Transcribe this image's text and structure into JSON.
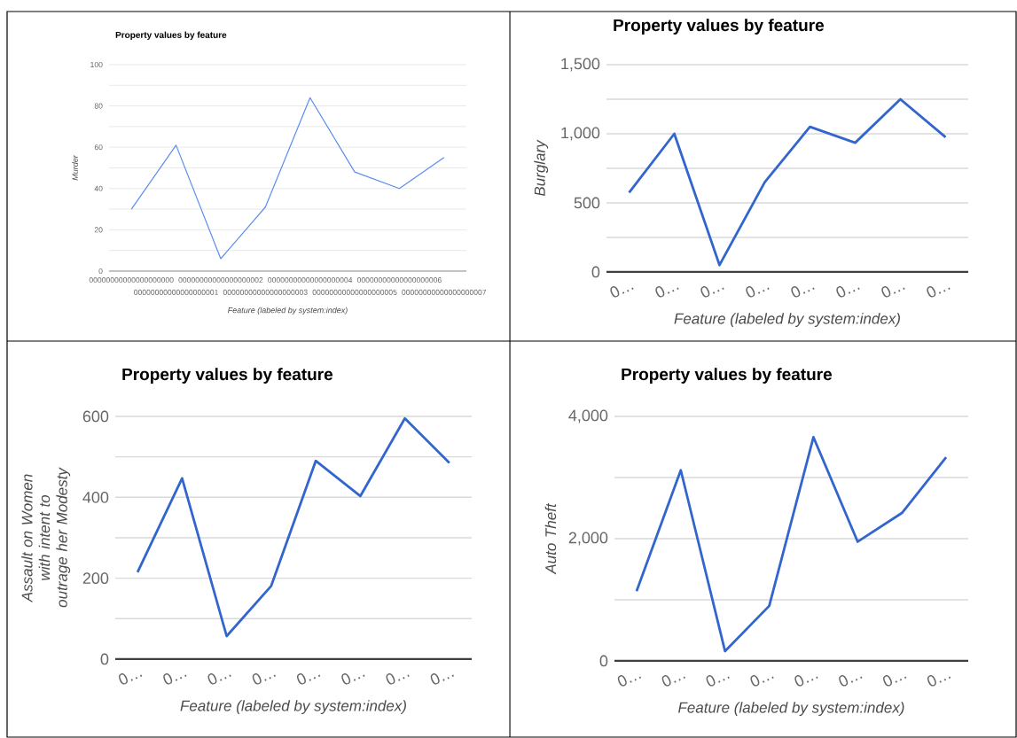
{
  "chart_data": [
    {
      "type": "line",
      "title": "Property values by feature",
      "xlabel": "Feature (labeled by system:index)",
      "ylabel": "Murder",
      "categories": [
        "00000000000000000000",
        "00000000000000000001",
        "00000000000000000002",
        "00000000000000000003",
        "00000000000000000004",
        "00000000000000000005",
        "00000000000000000006",
        "00000000000000000007"
      ],
      "values": [
        30,
        61,
        6,
        31,
        84,
        48,
        40,
        55
      ],
      "color": "#5b8def",
      "ylim": [
        0,
        100
      ],
      "yticks": [
        0,
        {
          "value": 10,
          "label": null
        },
        20,
        {
          "value": 30,
          "label": null
        },
        40,
        {
          "value": 50,
          "label": null
        },
        60,
        {
          "value": 70,
          "label": null
        },
        80,
        {
          "value": 90,
          "label": null
        },
        100
      ],
      "grid": "y"
    },
    {
      "type": "line",
      "title": "Property values by feature",
      "xlabel": "Feature (labeled by system:index)",
      "ylabel": "Burglary",
      "categories": [
        "0…",
        "0…",
        "0…",
        "0…",
        "0…",
        "0…",
        "0…",
        "0…"
      ],
      "values": [
        575,
        1000,
        50,
        650,
        1050,
        935,
        1250,
        975
      ],
      "color": "#3366cc",
      "ylim": [
        0,
        1500
      ],
      "yticks": [
        0,
        {
          "value": 250,
          "label": null
        },
        500,
        {
          "value": 750,
          "label": null
        },
        {
          "value": 1000,
          "label": "1,000"
        },
        {
          "value": 1250,
          "label": null
        },
        {
          "value": 1500,
          "label": "1,500"
        }
      ],
      "grid": "y"
    },
    {
      "type": "line",
      "title": "Property values by feature",
      "xlabel": "Feature (labeled by system:index)",
      "ylabel": "Assault on Women with intent to outrage her Modesty",
      "categories": [
        "0…",
        "0…",
        "0…",
        "0…",
        "0…",
        "0…",
        "0…",
        "0…"
      ],
      "values": [
        215,
        447,
        57,
        181,
        490,
        403,
        595,
        485
      ],
      "color": "#3366cc",
      "ylim": [
        0,
        600
      ],
      "yticks": [
        0,
        {
          "value": 100,
          "label": null
        },
        200,
        {
          "value": 300,
          "label": null
        },
        400,
        {
          "value": 500,
          "label": null
        },
        600
      ],
      "grid": "y"
    },
    {
      "type": "line",
      "title": "Property values by feature",
      "xlabel": "Feature (labeled by system:index)",
      "ylabel": "Auto Theft",
      "categories": [
        "0…",
        "0…",
        "0…",
        "0…",
        "0…",
        "0…",
        "0…",
        "0…"
      ],
      "values": [
        1140,
        3120,
        160,
        900,
        3660,
        1950,
        2420,
        3330
      ],
      "color": "#3366cc",
      "ylim": [
        0,
        4000
      ],
      "yticks": [
        0,
        {
          "value": 1000,
          "label": null
        },
        {
          "value": 2000,
          "label": "2,000"
        },
        {
          "value": 3000,
          "label": null
        },
        {
          "value": 4000,
          "label": "4,000"
        }
      ],
      "grid": "y"
    }
  ]
}
